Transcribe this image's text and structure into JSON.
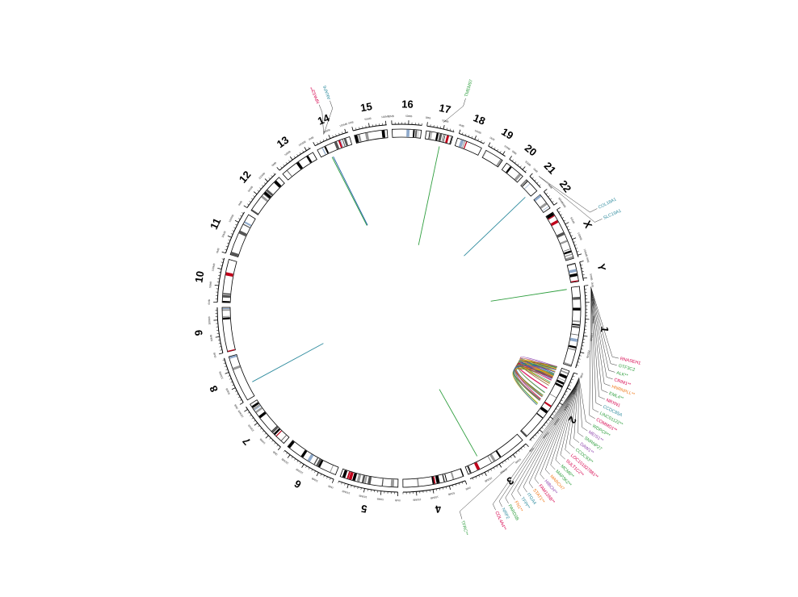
{
  "chromosomes": [
    {
      "name": "1",
      "color": "#000000"
    },
    {
      "name": "2",
      "color": "#000000"
    },
    {
      "name": "3",
      "color": "#000000"
    },
    {
      "name": "4",
      "color": "#000000"
    },
    {
      "name": "5",
      "color": "#000000"
    },
    {
      "name": "6",
      "color": "#000000"
    },
    {
      "name": "7",
      "color": "#000000"
    },
    {
      "name": "8",
      "color": "#000000"
    },
    {
      "name": "9",
      "color": "#000000"
    },
    {
      "name": "10",
      "color": "#000000"
    },
    {
      "name": "11",
      "color": "#000000"
    },
    {
      "name": "12",
      "color": "#000000"
    },
    {
      "name": "13",
      "color": "#000000"
    },
    {
      "name": "14",
      "color": "#000000"
    },
    {
      "name": "15",
      "color": "#000000"
    },
    {
      "name": "16",
      "color": "#000000"
    },
    {
      "name": "17",
      "color": "#000000"
    },
    {
      "name": "18",
      "color": "#000000"
    },
    {
      "name": "19",
      "color": "#000000"
    },
    {
      "name": "20",
      "color": "#000000"
    },
    {
      "name": "21",
      "color": "#000000"
    },
    {
      "name": "22",
      "color": "#000000"
    },
    {
      "name": "X",
      "color": "#000000"
    },
    {
      "name": "Y",
      "color": "#000000"
    }
  ],
  "tick_labels": [
    "0MB",
    "50MB",
    "100MB",
    "150MB",
    "200MB"
  ],
  "gene_labels_right": [
    {
      "text": "RNASEH1",
      "color": "#d6004c"
    },
    {
      "text": "GTF3C2",
      "color": "#2e9e3e"
    },
    {
      "text": "ALK**",
      "color": "#2e9e3e"
    },
    {
      "text": "CRIM1**",
      "color": "#d6004c"
    },
    {
      "text": "HNRNPLL**",
      "color": "#f07818"
    },
    {
      "text": "EML4**",
      "color": "#2e9e3e"
    },
    {
      "text": "NRXN1",
      "color": "#d6004c"
    },
    {
      "text": "CCDC85A",
      "color": "#2e8b9e"
    },
    {
      "text": "LINC01122**",
      "color": "#2e9e3e"
    },
    {
      "text": "COMMD1**",
      "color": "#d6004c"
    },
    {
      "text": "WDPCP**",
      "color": "#2e9e3e"
    },
    {
      "text": "MEIS1**",
      "color": "#8e44ad"
    },
    {
      "text": "SNRNP27",
      "color": "#2e9e3e"
    },
    {
      "text": "DAW1**",
      "color": "#8e44ad"
    },
    {
      "text": "CCDC93**",
      "color": "#2e9e3e"
    },
    {
      "text": "LOC101927881**",
      "color": "#d6004c"
    },
    {
      "text": "SULT1C2**",
      "color": "#d6004c"
    },
    {
      "text": "MCM6**",
      "color": "#2e9e3e"
    },
    {
      "text": "MAP3K2**",
      "color": "#2e9e3e"
    },
    {
      "text": "MARCH7",
      "color": "#f07818"
    },
    {
      "text": "HIBCH**",
      "color": "#8e44ad"
    },
    {
      "text": "FAM126B**",
      "color": "#d6004c"
    },
    {
      "text": "STAT1**",
      "color": "#f07818"
    },
    {
      "text": "ITGA4",
      "color": "#2e8b9e"
    },
    {
      "text": "TFPI**",
      "color": "#2e8b9e"
    },
    {
      "text": "FN1**",
      "color": "#f07818"
    },
    {
      "text": "PARD3B",
      "color": "#2e9e3e"
    },
    {
      "text": "NRP2",
      "color": "#2e8b9e"
    },
    {
      "text": "COL4A4**",
      "color": "#d6004c"
    }
  ],
  "gene_labels_other": [
    {
      "text": "NPAS3**",
      "color": "#d6004c",
      "chrom": "14"
    },
    {
      "text": "AKAP6",
      "color": "#2e8b9e",
      "chrom": "14"
    },
    {
      "text": "TMEM97",
      "color": "#2e9e3e",
      "chrom": "17"
    },
    {
      "text": "COL18A1",
      "color": "#2e8b9e",
      "chrom": "21"
    },
    {
      "text": "SLC19A1",
      "color": "#2e8b9e",
      "chrom": "21"
    },
    {
      "text": "TFRC**",
      "color": "#2e9e3e",
      "chrom": "3"
    }
  ],
  "link_colors": [
    "#2e9e3e",
    "#2e8b9e",
    "#d6004c",
    "#f07818",
    "#8e44ad",
    "#1f5fa8",
    "#e0b400",
    "#6b8e23",
    "#8b5a2b"
  ]
}
